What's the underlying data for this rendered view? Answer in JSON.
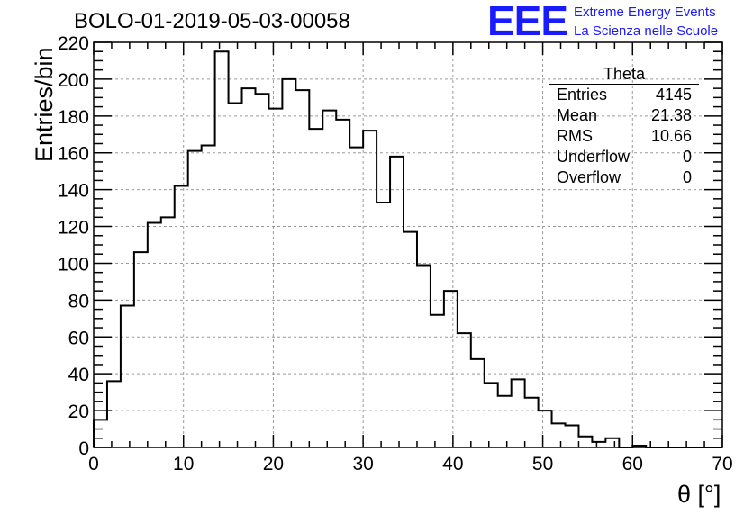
{
  "title": "BOLO-01-2019-05-03-00058",
  "logo": {
    "mark": "EEE",
    "line1": "Extreme Energy Events",
    "line2": "La Scienza nelle Scuole",
    "color": "#1a1aff"
  },
  "stats_box": {
    "title": "Theta",
    "rows": [
      {
        "label": "Entries",
        "value": "4145"
      },
      {
        "label": "Mean",
        "value": "21.38"
      },
      {
        "label": "RMS",
        "value": "10.66"
      },
      {
        "label": "Underflow",
        "value": "0"
      },
      {
        "label": "Overflow",
        "value": "0"
      }
    ]
  },
  "chart_data": {
    "type": "bar",
    "style": "step-histogram",
    "xlabel": "θ [°]",
    "ylabel": "Entries/bin",
    "xlim": [
      0,
      70
    ],
    "ylim": [
      0,
      220
    ],
    "xticks": [
      0,
      10,
      20,
      30,
      40,
      50,
      60,
      70
    ],
    "yticks": [
      0,
      20,
      40,
      60,
      80,
      100,
      120,
      140,
      160,
      180,
      200,
      220
    ],
    "grid": true,
    "bin_edges": [
      0,
      1.5,
      3,
      4.5,
      6,
      7.5,
      9,
      10.5,
      12,
      13.5,
      15,
      16.5,
      18,
      19.5,
      21,
      22.5,
      24,
      25.5,
      27,
      28.5,
      30,
      31.5,
      33,
      34.5,
      36,
      37.5,
      39,
      40.5,
      42,
      43.5,
      45,
      46.5,
      48,
      49.5,
      51,
      52.5,
      54,
      55.5,
      57,
      58.5,
      60,
      61.5,
      63,
      64.5,
      66,
      67.5,
      69,
      70
    ],
    "values": [
      15,
      36,
      77,
      106,
      122,
      125,
      142,
      161,
      164,
      215,
      187,
      195,
      192,
      184,
      200,
      194,
      173,
      183,
      178,
      163,
      172,
      133,
      158,
      117,
      99,
      72,
      85,
      62,
      48,
      35,
      28,
      37,
      27,
      20,
      13,
      12,
      6,
      3,
      5,
      0,
      1,
      0,
      0,
      0,
      0,
      0,
      0
    ],
    "line_color": "#000000"
  }
}
